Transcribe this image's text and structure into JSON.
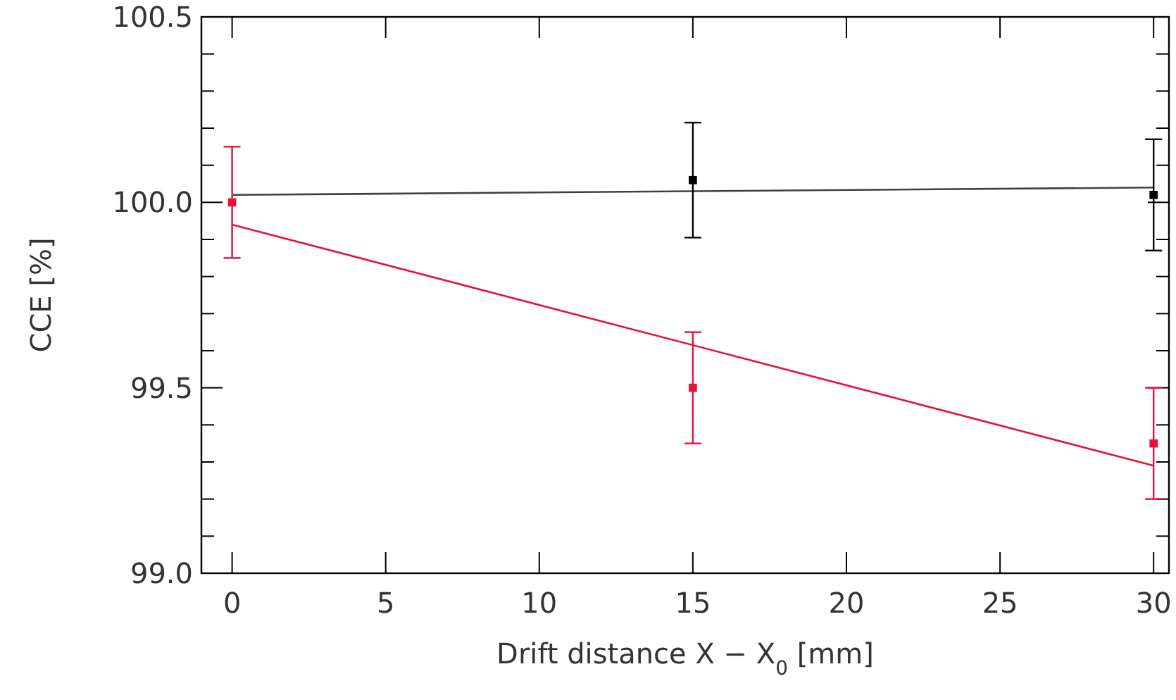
{
  "chart_data": {
    "type": "scatter",
    "xlabel": "Drift distance X − X$_{0}$ [mm]",
    "ylabel": "CCE [%]",
    "xlim": [
      -1,
      30.5
    ],
    "xticks": [
      0,
      5,
      10,
      15,
      20,
      25,
      30
    ],
    "ylim": [
      99.0,
      100.5
    ],
    "yticks": [
      {
        "value": 99,
        "label": "99.0"
      },
      {
        "value": 99.1,
        "label": null
      },
      {
        "value": 99.2,
        "label": null
      },
      {
        "value": 99.3,
        "label": null
      },
      {
        "value": 99.4,
        "label": null
      },
      99.5,
      {
        "value": 99.6,
        "label": null
      },
      {
        "value": 99.7,
        "label": null
      },
      {
        "value": 99.8,
        "label": null
      },
      {
        "value": 99.9,
        "label": null
      },
      {
        "value": 100,
        "label": "100.0"
      },
      {
        "value": 100.1,
        "label": null
      },
      {
        "value": 100.2,
        "label": null
      },
      {
        "value": 100.3,
        "label": null
      },
      {
        "value": 100.4,
        "label": null
      },
      100.5
    ],
    "grid": false,
    "series": [
      {
        "type": "line",
        "color": "#404040",
        "x": [
          0,
          30
        ],
        "values": [
          100.02,
          100.04
        ]
      },
      {
        "type": "line",
        "color": "#e8103c",
        "x": [
          0,
          30
        ],
        "values": [
          99.94,
          99.29
        ]
      },
      {
        "color": "#000000",
        "x": [
          15,
          30
        ],
        "values": [
          100.06,
          100.02
        ],
        "errors": [
          0.155,
          0.15
        ],
        "marker": "square"
      },
      {
        "color": "#e8103c",
        "x": [
          0,
          15,
          30
        ],
        "values": [
          100.0,
          99.5,
          99.35
        ],
        "errors": [
          0.15,
          0.15,
          0.15
        ],
        "marker": "square"
      }
    ]
  }
}
